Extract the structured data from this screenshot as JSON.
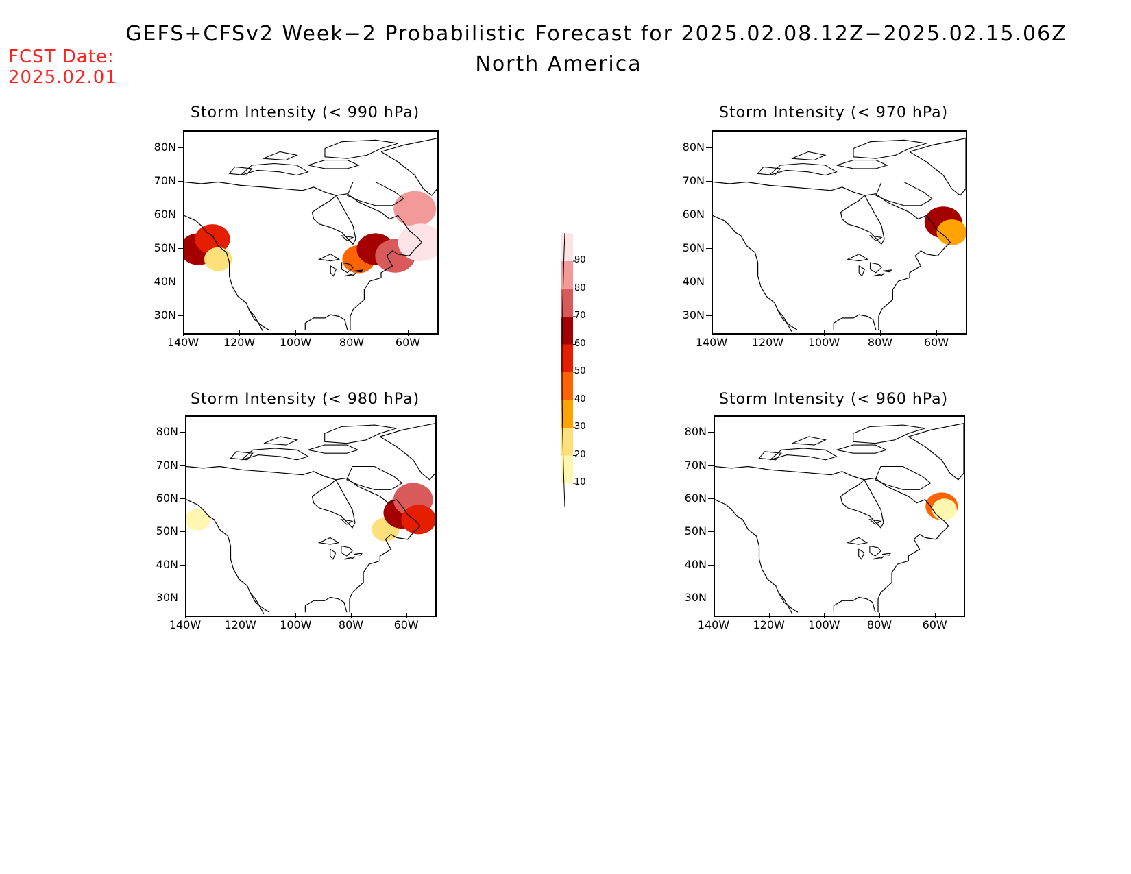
{
  "title": {
    "line1": "GEFS+CFSv2 Week−2 Probabilistic Forecast for 2025.02.08.12Z−2025.02.15.06Z",
    "line2": "North America"
  },
  "fcst_date": {
    "label": "FCST Date:",
    "value": "2025.02.01"
  },
  "lat_labels": [
    "80N",
    "70N",
    "60N",
    "50N",
    "40N",
    "30N"
  ],
  "lon_labels": [
    "140W",
    "120W",
    "100W",
    "80W",
    "60W"
  ],
  "panels": [
    {
      "title": "Storm Intensity (< 990 hPa)",
      "regions": [
        {
          "lon": -135,
          "lat": 50,
          "p": 60
        },
        {
          "lon": -130,
          "lat": 53,
          "p": 50
        },
        {
          "lon": -128,
          "lat": 47,
          "p": 20
        },
        {
          "lon": -78,
          "lat": 47,
          "p": 40
        },
        {
          "lon": -72,
          "lat": 50,
          "p": 60
        },
        {
          "lon": -65,
          "lat": 48,
          "p": 70
        },
        {
          "lon": -58,
          "lat": 62,
          "p": 80
        },
        {
          "lon": -56,
          "lat": 52,
          "p": 90
        }
      ]
    },
    {
      "title": "Storm Intensity (< 970 hPa)",
      "regions": [
        {
          "lon": -58,
          "lat": 58,
          "p": 60
        },
        {
          "lon": -55,
          "lat": 55,
          "p": 30
        }
      ]
    },
    {
      "title": "Storm Intensity (< 980 hPa)",
      "regions": [
        {
          "lon": -136,
          "lat": 54,
          "p": 10
        },
        {
          "lon": -68,
          "lat": 51,
          "p": 20
        },
        {
          "lon": -62,
          "lat": 56,
          "p": 60
        },
        {
          "lon": -58,
          "lat": 60,
          "p": 70
        },
        {
          "lon": -56,
          "lat": 54,
          "p": 50
        }
      ]
    },
    {
      "title": "Storm Intensity (< 960 hPa)",
      "regions": [
        {
          "lon": -58,
          "lat": 58,
          "p": 40
        },
        {
          "lon": -57,
          "lat": 57,
          "p": 10
        }
      ]
    }
  ],
  "colorbar": {
    "levels": [
      "10",
      "20",
      "30",
      "40",
      "50",
      "60",
      "70",
      "80",
      "90"
    ],
    "colors": [
      "#fff6b0",
      "#fde07a",
      "#ffa300",
      "#ff6400",
      "#e61e00",
      "#a50000",
      "#d95a5a",
      "#f29a9a",
      "#fde3e6"
    ]
  },
  "coastline_color": "#000000",
  "fcst_color": "#ff2020"
}
